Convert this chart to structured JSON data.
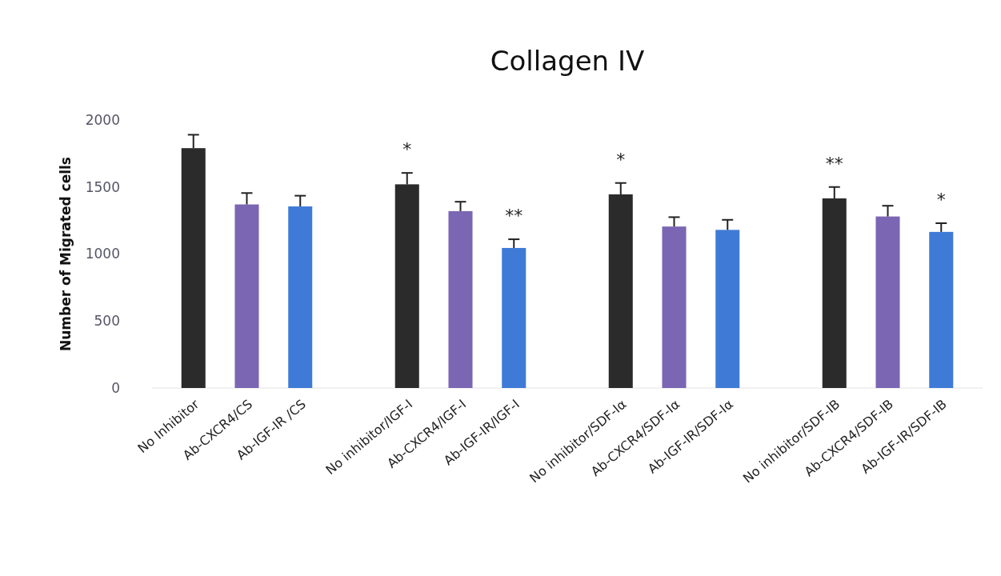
{
  "chart_data": {
    "type": "bar",
    "title": "Collagen IV",
    "ylabel": "Number of Migrated cells",
    "categories": [
      "No Inhibitor",
      "Ab-CXCR4/CS",
      "Ab-IGF-IR /CS",
      null,
      "No inhibitor/IGF-I",
      "Ab-CXCR4/IGF-I",
      "Ab-IGF-IR/IGF-I",
      null,
      "No inhibitor/SDF-Iα",
      "Ab-CXCR4/SDF-Iα",
      "Ab-IGF-IR/SDF-Iα",
      null,
      "No inhibitor/SDF-IB",
      "Ab-CXCR4/SDF-IB",
      "Ab-IGF-IR/SDF-IB"
    ],
    "values": [
      1790,
      1370,
      1355,
      null,
      1520,
      1320,
      1045,
      null,
      1445,
      1205,
      1180,
      null,
      1415,
      1280,
      1165
    ],
    "errors": [
      100,
      85,
      80,
      null,
      85,
      70,
      65,
      null,
      85,
      70,
      75,
      null,
      85,
      80,
      65
    ],
    "colors": [
      "#2b2b2b",
      "#7b66b3",
      "#3f7bd6",
      null,
      "#2b2b2b",
      "#7b66b3",
      "#3f7bd6",
      null,
      "#2b2b2b",
      "#7b66b3",
      "#3f7bd6",
      null,
      "#2b2b2b",
      "#7b66b3",
      "#3f7bd6"
    ],
    "ylim": [
      0,
      2000
    ],
    "yticks": [
      0,
      500,
      1000,
      1500,
      2000
    ],
    "grid": false,
    "annotations": [
      {
        "text": "*",
        "x": "No inhibitor/IGF-I",
        "y": 1520
      },
      {
        "text": "**",
        "x": "Ab-IGF-IR/IGF-I",
        "y": 1045
      },
      {
        "text": "*",
        "x": "No inhibitor/SDF-Iα",
        "y": 1445
      },
      {
        "text": "**",
        "x": "No inhibitor/SDF-IB",
        "y": 1415
      },
      {
        "text": "*",
        "x": "Ab-IGF-IR/SDF-IB",
        "y": 1165
      }
    ]
  }
}
